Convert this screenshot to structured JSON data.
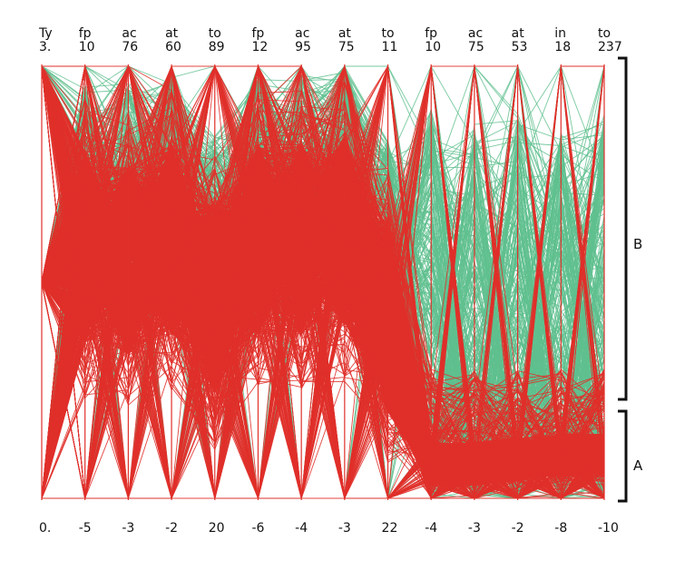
{
  "chart_data": {
    "type": "parallel-coordinates",
    "title": "",
    "axes": [
      {
        "label": "Ty",
        "max": "3.",
        "min": "0."
      },
      {
        "label": "fp",
        "max": "10",
        "min": "-5"
      },
      {
        "label": "ac",
        "max": "76",
        "min": "-3"
      },
      {
        "label": "at",
        "max": "60",
        "min": "-2"
      },
      {
        "label": "to",
        "max": "89",
        "min": "20"
      },
      {
        "label": "fp",
        "max": "12",
        "min": "-6"
      },
      {
        "label": "ac",
        "max": "95",
        "min": "-4"
      },
      {
        "label": "at",
        "max": "75",
        "min": "-3"
      },
      {
        "label": "to",
        "max": "11",
        "min": "22"
      },
      {
        "label": "fp",
        "max": "10",
        "min": "-4"
      },
      {
        "label": "ac",
        "max": "75",
        "min": "-3"
      },
      {
        "label": "at",
        "max": "53",
        "min": "-2"
      },
      {
        "label": "in",
        "max": "18",
        "min": "-8"
      },
      {
        "label": "to",
        "max": "237",
        "min": "-10"
      }
    ],
    "groups": [
      {
        "label": "B",
        "color": "#5fc08e",
        "profile": [
          0.5,
          0.68,
          0.68,
          0.7,
          0.56,
          0.7,
          0.7,
          0.72,
          0.55,
          0.35,
          0.32,
          0.34,
          0.3,
          0.34
        ]
      },
      {
        "label": "A",
        "color": "#e0302a",
        "profile": [
          0.5,
          0.58,
          0.55,
          0.6,
          0.46,
          0.6,
          0.6,
          0.62,
          0.42,
          0.08,
          0.08,
          0.09,
          0.1,
          0.1
        ]
      }
    ],
    "brackets": [
      {
        "label": "B"
      },
      {
        "label": "A"
      }
    ],
    "axis_color": "#e0302a",
    "grid": false,
    "legend": "none"
  }
}
